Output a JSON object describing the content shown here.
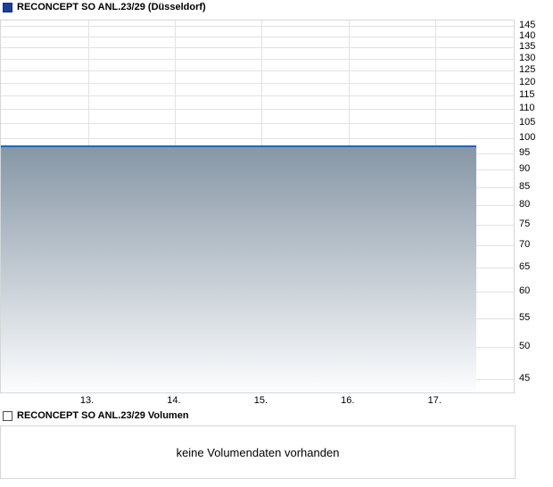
{
  "colors": {
    "price_line": "#2565b5",
    "area_fill_top": "#8797a6",
    "area_fill_bottom": "#fcfdfe",
    "gridline": "#e2e2e2",
    "panel_border": "#d6d6d6",
    "price_legend_square": "#1c3e9b",
    "text": "#000000"
  },
  "chart_data": [
    {
      "type": "area",
      "title": "RECONCEPT SO ANL.23/29 (Düsseldorf)",
      "legend_color": "#1c3e9b",
      "yscale": "log",
      "ylim": [
        43,
        147.5
      ],
      "y_ticks": [
        45,
        50,
        55,
        60,
        65,
        70,
        75,
        80,
        85,
        90,
        95,
        100,
        105,
        110,
        115,
        120,
        125,
        130,
        135,
        140,
        145
      ],
      "xlim_days": [
        12.0,
        17.9
      ],
      "x_ticks": [
        {
          "label": "13.",
          "day": 13
        },
        {
          "label": "14.",
          "day": 14
        },
        {
          "label": "15.",
          "day": 15
        },
        {
          "label": "16.",
          "day": 16
        },
        {
          "label": "17.",
          "day": 17
        }
      ],
      "grid": true,
      "legend_position": "top-left",
      "series": [
        {
          "name": "RECONCEPT SO ANL.23/29",
          "color": "#2565b5",
          "fill_top": "#8797a6",
          "fill_bottom": "#fcfdfe",
          "points": [
            {
              "day": 12.0,
              "price": 97.0
            },
            {
              "day": 17.47,
              "price": 97.0
            }
          ]
        }
      ]
    },
    {
      "type": "volume-bar",
      "title": "RECONCEPT SO ANL.23/29 Volumen",
      "values": [],
      "message": "keine Volumendaten vorhanden"
    }
  ]
}
